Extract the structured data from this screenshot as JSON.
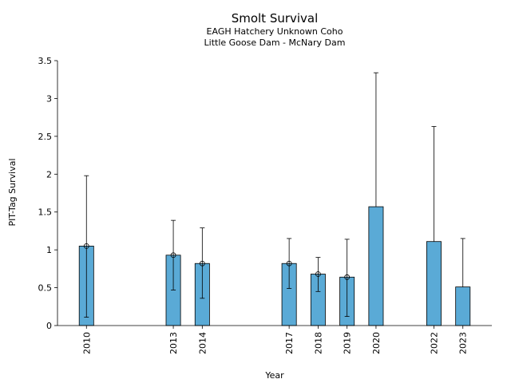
{
  "chart_data": {
    "type": "bar",
    "title": "Smolt Survival",
    "subtitle_lines": [
      "EAGH Hatchery Unknown Coho",
      "Little Goose Dam - McNary Dam"
    ],
    "xlabel": "Year",
    "ylabel": "PIT-Tag Survival",
    "xlim": [
      2009,
      2024
    ],
    "ylim": [
      0,
      3.5
    ],
    "yticks": [
      0,
      0.5,
      1,
      1.5,
      2,
      2.5,
      3,
      3.5
    ],
    "ytick_labels": [
      "0",
      "0.5",
      "1",
      "1.5",
      "2",
      "2.5",
      "3",
      "3.5"
    ],
    "categories": [
      "2010",
      "2013",
      "2014",
      "2017",
      "2018",
      "2019",
      "2020",
      "2022",
      "2023"
    ],
    "x": [
      2010,
      2013,
      2014,
      2017,
      2018,
      2019,
      2020,
      2022,
      2023
    ],
    "values": [
      1.05,
      0.93,
      0.82,
      0.82,
      0.68,
      0.64,
      1.57,
      1.11,
      0.51
    ],
    "lower": [
      0.11,
      0.47,
      0.36,
      0.49,
      0.45,
      0.12,
      null,
      null,
      null
    ],
    "upper": [
      1.98,
      1.39,
      1.29,
      1.15,
      0.9,
      1.14,
      3.34,
      2.63,
      1.15
    ],
    "markers": [
      true,
      true,
      true,
      true,
      true,
      true,
      false,
      false,
      false
    ],
    "bar_color": "#5aaad6",
    "edge_color": "#000000",
    "grid": false
  }
}
